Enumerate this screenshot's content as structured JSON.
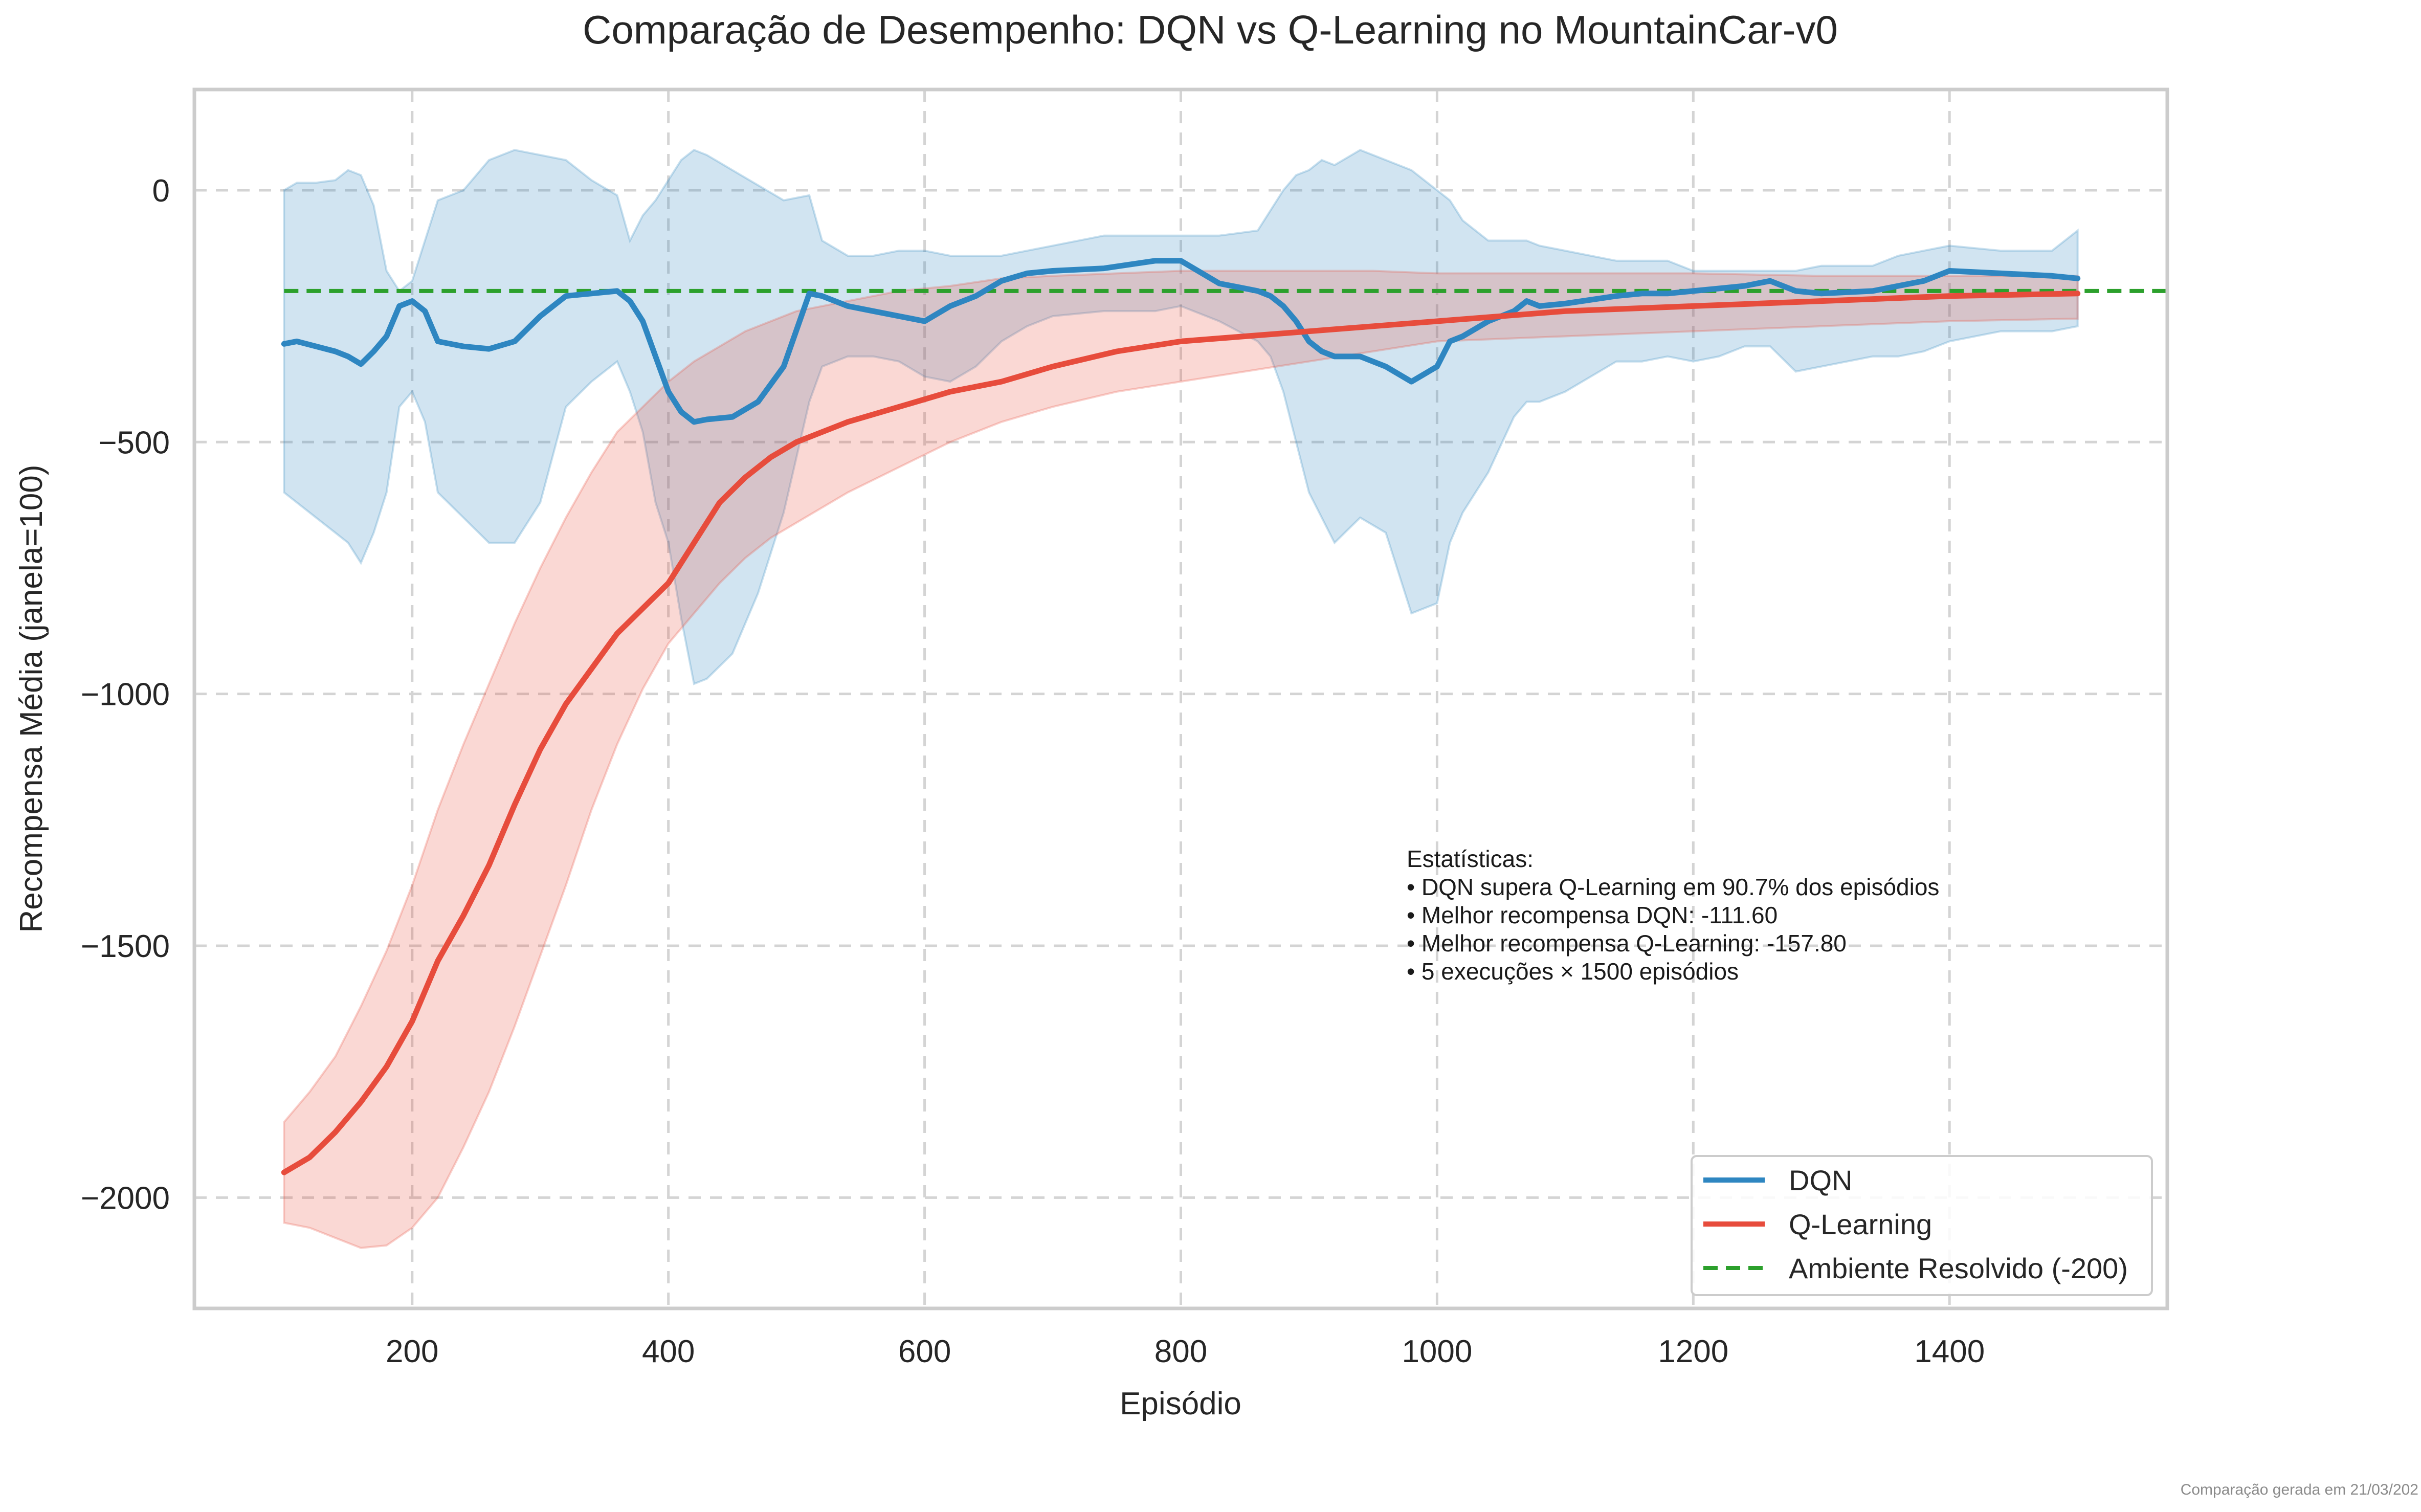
{
  "chart_data": {
    "type": "line",
    "title": "Comparação de Desempenho: DQN vs Q-Learning no MountainCar-v0",
    "xlabel": "Episódio",
    "ylabel": "Recompensa Média (janela=100)",
    "xlim": [
      30,
      1570
    ],
    "ylim": [
      -2220,
      200
    ],
    "xticks": [
      200,
      400,
      600,
      800,
      1000,
      1200,
      1400
    ],
    "xtick_labels": [
      "200",
      "400",
      "600",
      "800",
      "1000",
      "1200",
      "1400"
    ],
    "yticks": [
      0,
      -500,
      -1000,
      -1500,
      -2000
    ],
    "ytick_labels": [
      "0",
      "−500",
      "−1000",
      "−1500",
      "−2000"
    ],
    "grid": true,
    "legend_position": "lower-right",
    "threshold": {
      "name": "Ambiente Resolvido (-200)",
      "y": -200,
      "color": "#2ca02c",
      "style": "dashed"
    },
    "series": [
      {
        "name": "DQN",
        "color": "#2e86c1",
        "x": [
          100,
          110,
          125,
          140,
          150,
          160,
          170,
          180,
          190,
          200,
          210,
          220,
          240,
          260,
          280,
          300,
          320,
          340,
          360,
          370,
          380,
          390,
          400,
          410,
          420,
          430,
          450,
          470,
          490,
          510,
          520,
          540,
          560,
          580,
          600,
          620,
          640,
          660,
          680,
          700,
          740,
          780,
          800,
          830,
          860,
          870,
          880,
          890,
          900,
          910,
          920,
          940,
          960,
          980,
          1000,
          1010,
          1020,
          1040,
          1060,
          1070,
          1080,
          1100,
          1140,
          1160,
          1180,
          1200,
          1220,
          1240,
          1260,
          1280,
          1300,
          1340,
          1360,
          1380,
          1400,
          1440,
          1480,
          1500
        ],
        "y": [
          -305,
          -300,
          -310,
          -320,
          -330,
          -345,
          -320,
          -290,
          -230,
          -220,
          -240,
          -300,
          -310,
          -315,
          -300,
          -250,
          -210,
          -205,
          -200,
          -220,
          -260,
          -330,
          -400,
          -440,
          -460,
          -455,
          -450,
          -420,
          -350,
          -205,
          -210,
          -230,
          -240,
          -250,
          -260,
          -230,
          -210,
          -180,
          -165,
          -160,
          -155,
          -140,
          -140,
          -185,
          -200,
          -210,
          -230,
          -260,
          -300,
          -320,
          -330,
          -330,
          -350,
          -380,
          -350,
          -300,
          -290,
          -260,
          -240,
          -220,
          -230,
          -225,
          -210,
          -205,
          -205,
          -200,
          -195,
          -190,
          -180,
          -200,
          -205,
          -200,
          -190,
          -180,
          -160,
          -165,
          -170,
          -175
        ],
        "band_upper": [
          0,
          15,
          15,
          20,
          40,
          30,
          -30,
          -160,
          -200,
          -180,
          -100,
          -20,
          0,
          60,
          80,
          70,
          60,
          20,
          -10,
          -100,
          -50,
          -20,
          20,
          60,
          80,
          70,
          40,
          10,
          -20,
          -10,
          -100,
          -130,
          -130,
          -120,
          -120,
          -130,
          -130,
          -130,
          -120,
          -110,
          -90,
          -90,
          -90,
          -90,
          -80,
          -40,
          0,
          30,
          40,
          60,
          50,
          80,
          60,
          40,
          0,
          -20,
          -60,
          -100,
          -100,
          -100,
          -110,
          -120,
          -140,
          -140,
          -140,
          -160,
          -160,
          -160,
          -160,
          -160,
          -150,
          -150,
          -130,
          -120,
          -110,
          -120,
          -120,
          -80
        ],
        "band_lower": [
          -600,
          -620,
          -650,
          -680,
          -700,
          -740,
          -680,
          -600,
          -430,
          -400,
          -460,
          -600,
          -650,
          -700,
          -700,
          -620,
          -430,
          -380,
          -340,
          -400,
          -480,
          -620,
          -700,
          -850,
          -980,
          -970,
          -920,
          -800,
          -640,
          -420,
          -350,
          -330,
          -330,
          -340,
          -370,
          -380,
          -350,
          -300,
          -270,
          -250,
          -240,
          -240,
          -230,
          -260,
          -300,
          -330,
          -400,
          -500,
          -600,
          -650,
          -700,
          -650,
          -680,
          -840,
          -820,
          -700,
          -640,
          -560,
          -450,
          -420,
          -420,
          -400,
          -340,
          -340,
          -330,
          -340,
          -330,
          -310,
          -310,
          -360,
          -350,
          -330,
          -330,
          -320,
          -300,
          -280,
          -280,
          -270
        ]
      },
      {
        "name": "Q-Learning",
        "color": "#e74c3c",
        "x": [
          100,
          120,
          140,
          160,
          180,
          200,
          220,
          240,
          260,
          280,
          300,
          320,
          340,
          360,
          380,
          400,
          420,
          440,
          460,
          480,
          500,
          540,
          580,
          620,
          660,
          700,
          750,
          800,
          850,
          900,
          950,
          1000,
          1100,
          1200,
          1300,
          1400,
          1500
        ],
        "y": [
          -1950,
          -1920,
          -1870,
          -1810,
          -1740,
          -1650,
          -1530,
          -1440,
          -1340,
          -1220,
          -1110,
          -1020,
          -950,
          -880,
          -830,
          -780,
          -700,
          -620,
          -570,
          -530,
          -500,
          -460,
          -430,
          -400,
          -380,
          -350,
          -320,
          -300,
          -290,
          -280,
          -270,
          -260,
          -240,
          -230,
          -220,
          -210,
          -205
        ],
        "band_upper": [
          -1850,
          -1790,
          -1720,
          -1620,
          -1510,
          -1380,
          -1230,
          -1100,
          -980,
          -860,
          -750,
          -650,
          -560,
          -480,
          -430,
          -380,
          -340,
          -310,
          -280,
          -260,
          -240,
          -220,
          -200,
          -190,
          -175,
          -170,
          -165,
          -160,
          -160,
          -160,
          -160,
          -165,
          -165,
          -165,
          -170,
          -170,
          -170
        ],
        "band_lower": [
          -2050,
          -2060,
          -2080,
          -2100,
          -2095,
          -2060,
          -2000,
          -1900,
          -1790,
          -1660,
          -1520,
          -1380,
          -1230,
          -1100,
          -990,
          -900,
          -840,
          -780,
          -730,
          -690,
          -660,
          -600,
          -550,
          -500,
          -460,
          -430,
          -400,
          -380,
          -360,
          -340,
          -320,
          -300,
          -290,
          -280,
          -270,
          -260,
          -255
        ]
      }
    ],
    "annotation": {
      "lines": [
        "Estatísticas:",
        "• DQN supera Q-Learning em 90.7% dos episódios",
        "• Melhor recompensa DQN: -111.60",
        "• Melhor recompensa Q-Learning: -157.80",
        "• 5 execuções × 1500 episódios"
      ]
    }
  },
  "legend": {
    "items": [
      {
        "label": "DQN",
        "color": "#2e86c1",
        "style": "solid"
      },
      {
        "label": "Q-Learning",
        "color": "#e74c3c",
        "style": "solid"
      },
      {
        "label": "Ambiente Resolvido (-200)",
        "color": "#2ca02c",
        "style": "dashed"
      }
    ]
  },
  "footer": "Comparação gerada em 21/03/202"
}
